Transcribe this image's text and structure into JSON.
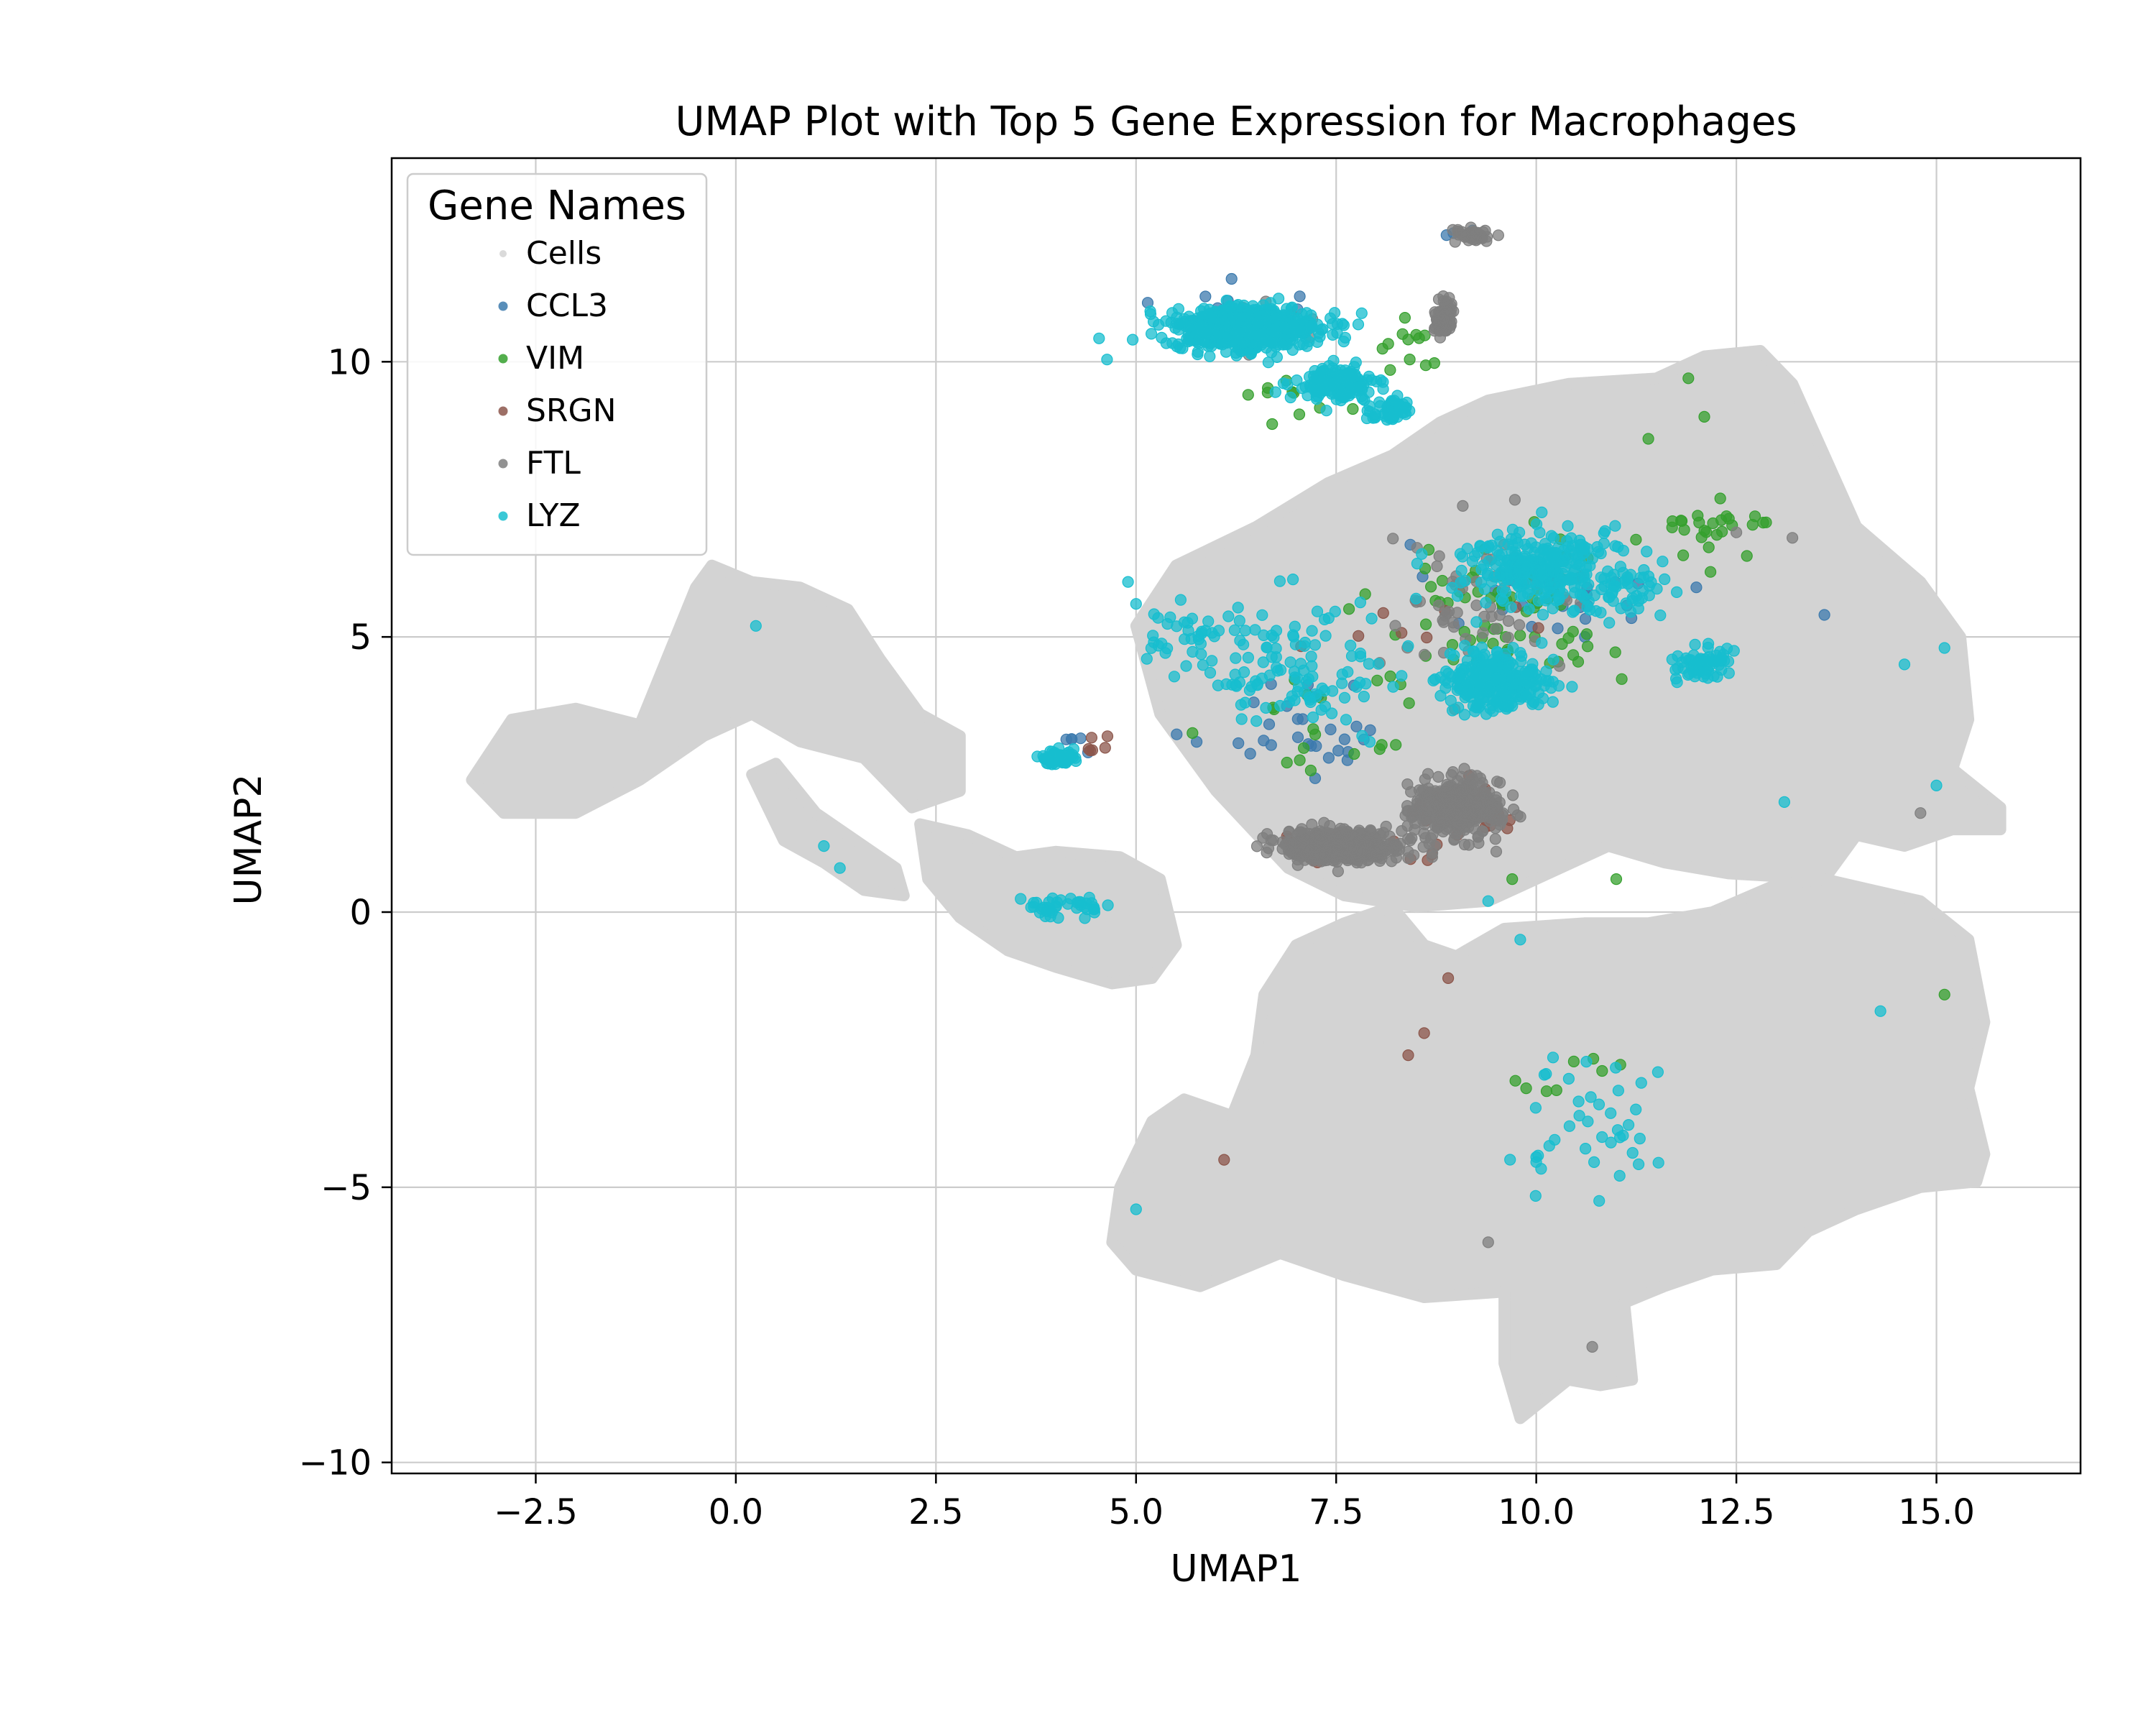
{
  "chart_data": {
    "type": "scatter",
    "title": "UMAP Plot with Top 5 Gene Expression for Macrophages",
    "xlabel": "UMAP1",
    "ylabel": "UMAP2",
    "xlim": [
      -4.3,
      16.8
    ],
    "ylim": [
      -10.2,
      13.7
    ],
    "grid": true,
    "legend": {
      "title": "Gene Names",
      "placement": "top-left"
    },
    "xticks": [
      -2.5,
      0.0,
      2.5,
      5.0,
      7.5,
      10.0,
      12.5,
      15.0
    ],
    "xtick_labels": [
      "−2.5",
      "0.0",
      "2.5",
      "5.0",
      "7.5",
      "10.0",
      "12.5",
      "15.0"
    ],
    "yticks": [
      -10,
      -5,
      0,
      5,
      10
    ],
    "ytick_labels": [
      "−10",
      "−5",
      "0",
      "5",
      "10"
    ],
    "background": {
      "name": "Cells",
      "color": "#d3d3d3",
      "regions": [
        {
          "x": [
            -3.3,
            -2.8,
            -2.0,
            -1.2,
            -0.5,
            -0.3,
            0.2,
            0.8,
            1.4,
            1.8,
            2.3,
            2.8,
            2.8,
            2.2,
            1.6,
            0.8,
            0.2,
            -0.4,
            -1.2,
            -2.0,
            -2.9,
            -3.3
          ],
          "y": [
            2.4,
            3.5,
            3.7,
            3.4,
            5.9,
            6.3,
            6.0,
            5.9,
            5.5,
            4.6,
            3.6,
            3.2,
            2.2,
            1.9,
            2.8,
            3.1,
            3.6,
            3.2,
            2.4,
            1.8,
            1.8,
            2.4
          ]
        },
        {
          "x": [
            0.2,
            0.5,
            1.0,
            1.5,
            2.0,
            2.1,
            1.6,
            1.1,
            0.6,
            0.2
          ],
          "y": [
            2.5,
            2.7,
            1.8,
            1.3,
            0.8,
            0.3,
            0.4,
            0.9,
            1.3,
            2.5
          ]
        },
        {
          "x": [
            2.3,
            2.9,
            3.5,
            4.0,
            4.8,
            5.3,
            5.5,
            5.2,
            4.7,
            4.0,
            3.4,
            2.8,
            2.4,
            2.3
          ],
          "y": [
            1.6,
            1.4,
            1.0,
            1.1,
            1.0,
            0.6,
            -0.6,
            -1.2,
            -1.3,
            -1.0,
            -0.7,
            -0.1,
            0.6,
            1.6
          ]
        },
        {
          "x": [
            5.0,
            5.5,
            6.5,
            7.4,
            8.2,
            8.8,
            9.4,
            10.4,
            11.5,
            12.1,
            12.8,
            13.2,
            14.0,
            14.8,
            15.3,
            15.4,
            15.2,
            15.8,
            15.8,
            15.2,
            14.6,
            14.0,
            13.6,
            12.4,
            11.6,
            10.9,
            10.0,
            9.4,
            8.5,
            7.6,
            6.9,
            6.0,
            5.3,
            5.0
          ],
          "y": [
            5.2,
            6.3,
            7.0,
            7.8,
            8.3,
            8.9,
            9.3,
            9.6,
            9.7,
            10.1,
            10.2,
            9.6,
            7.0,
            6.0,
            5.0,
            3.5,
            2.6,
            1.9,
            1.5,
            1.5,
            1.2,
            1.4,
            0.6,
            0.7,
            0.9,
            1.2,
            0.6,
            0.2,
            0.1,
            0.3,
            0.8,
            2.2,
            3.6,
            5.2
          ]
        },
        {
          "x": [
            8.2,
            8.6,
            9.0,
            9.6,
            10.6,
            11.4,
            12.2,
            13.0,
            13.6,
            14.2,
            14.8,
            15.4,
            15.6,
            15.4,
            15.6,
            15.5,
            14.8,
            14.0,
            13.4,
            13.0,
            12.2,
            11.6,
            11.1,
            11.2,
            10.8,
            10.4,
            9.8,
            9.6,
            9.6,
            8.6,
            7.6,
            6.8,
            5.8,
            5.0,
            4.7,
            4.8,
            5.2,
            5.6,
            6.2,
            6.5,
            6.6,
            7.0,
            7.6,
            8.2
          ],
          "y": [
            0.1,
            -0.6,
            -0.8,
            -0.3,
            -0.2,
            -0.2,
            0.0,
            0.5,
            0.6,
            0.4,
            0.2,
            -0.5,
            -2.0,
            -3.2,
            -4.4,
            -4.9,
            -5.0,
            -5.4,
            -5.8,
            -6.4,
            -6.5,
            -6.8,
            -7.1,
            -8.5,
            -8.6,
            -8.5,
            -9.2,
            -8.2,
            -6.9,
            -7.0,
            -6.6,
            -6.2,
            -6.8,
            -6.5,
            -6.0,
            -5.0,
            -3.8,
            -3.4,
            -3.7,
            -2.6,
            -1.5,
            -0.6,
            -0.2,
            0.1
          ]
        }
      ]
    },
    "series": [
      {
        "name": "CCL3",
        "color": "#3c7aad",
        "clusters": [
          {
            "n": 30,
            "cx": 7.0,
            "cy": 3.4,
            "sx": 1.4,
            "sy": 1.0
          },
          {
            "n": 25,
            "cx": 10.0,
            "cy": 5.8,
            "sx": 1.3,
            "sy": 0.9
          },
          {
            "n": 10,
            "cx": 6.2,
            "cy": 11.0,
            "sx": 0.9,
            "sy": 0.4
          },
          {
            "n": 4,
            "cx": 4.2,
            "cy": 3.1,
            "sx": 0.2,
            "sy": 0.2
          },
          {
            "n": 3,
            "cx": 9.0,
            "cy": 12.3,
            "sx": 0.2,
            "sy": 0.1
          }
        ],
        "points": [
          [
            13.6,
            5.4
          ],
          [
            12.0,
            5.9
          ],
          [
            4.4,
            2.9
          ]
        ]
      },
      {
        "name": "VIM",
        "color": "#35a02e",
        "clusters": [
          {
            "n": 70,
            "cx": 9.6,
            "cy": 5.6,
            "sx": 1.6,
            "sy": 1.5
          },
          {
            "n": 25,
            "cx": 12.3,
            "cy": 7.0,
            "sx": 0.8,
            "sy": 0.4
          },
          {
            "n": 20,
            "cx": 7.4,
            "cy": 3.5,
            "sx": 1.2,
            "sy": 1.2
          },
          {
            "n": 12,
            "cx": 8.4,
            "cy": 10.4,
            "sx": 0.6,
            "sy": 0.9
          },
          {
            "n": 10,
            "cx": 7.0,
            "cy": 9.4,
            "sx": 0.8,
            "sy": 0.5
          },
          {
            "n": 8,
            "cx": 10.4,
            "cy": -3.2,
            "sx": 0.9,
            "sy": 0.7
          }
        ],
        "points": [
          [
            11.9,
            9.7
          ],
          [
            12.1,
            9.0
          ],
          [
            11.4,
            8.6
          ],
          [
            15.1,
            -1.5
          ],
          [
            11.0,
            0.6
          ],
          [
            9.7,
            0.6
          ]
        ]
      },
      {
        "name": "SRGN",
        "color": "#8c564b",
        "clusters": [
          {
            "n": 40,
            "cx": 9.2,
            "cy": 1.8,
            "sx": 0.6,
            "sy": 0.5
          },
          {
            "n": 25,
            "cx": 7.6,
            "cy": 1.2,
            "sx": 1.0,
            "sy": 0.3
          },
          {
            "n": 6,
            "cx": 4.5,
            "cy": 3.0,
            "sx": 0.25,
            "sy": 0.2
          },
          {
            "n": 8,
            "cx": 8.5,
            "cy": 5.0,
            "sx": 1.2,
            "sy": 1.0
          }
        ],
        "points": [
          [
            8.9,
            -1.2
          ],
          [
            8.6,
            -2.2
          ],
          [
            8.4,
            -2.6
          ],
          [
            6.1,
            -4.5
          ]
        ]
      },
      {
        "name": "FTL",
        "color": "#7f7f7f",
        "clusters": [
          {
            "n": 500,
            "cx": 7.6,
            "cy": 1.2,
            "sx": 0.75,
            "sy": 0.28
          },
          {
            "n": 380,
            "cx": 9.0,
            "cy": 1.9,
            "sx": 0.55,
            "sy": 0.5
          },
          {
            "n": 80,
            "cx": 8.85,
            "cy": 10.8,
            "sx": 0.12,
            "sy": 0.3
          },
          {
            "n": 40,
            "cx": 9.2,
            "cy": 12.3,
            "sx": 0.25,
            "sy": 0.12
          },
          {
            "n": 60,
            "cx": 9.3,
            "cy": 5.5,
            "sx": 1.3,
            "sy": 1.2
          },
          {
            "n": 20,
            "cx": 6.4,
            "cy": 10.6,
            "sx": 0.9,
            "sy": 0.6
          }
        ],
        "points": [
          [
            12.5,
            6.9
          ],
          [
            13.2,
            6.8
          ],
          [
            14.8,
            1.8
          ],
          [
            9.4,
            -6.0
          ],
          [
            10.7,
            -7.9
          ],
          [
            8.7,
            1.0
          ],
          [
            9.5,
            1.1
          ]
        ]
      },
      {
        "name": "LYZ",
        "color": "#17becf",
        "clusters": [
          {
            "n": 650,
            "cx": 6.4,
            "cy": 10.6,
            "sx": 0.9,
            "sy": 0.4
          },
          {
            "n": 150,
            "cx": 7.5,
            "cy": 9.6,
            "sx": 0.5,
            "sy": 0.3
          },
          {
            "n": 60,
            "cx": 8.2,
            "cy": 9.1,
            "sx": 0.25,
            "sy": 0.2
          },
          {
            "n": 300,
            "cx": 9.5,
            "cy": 4.2,
            "sx": 0.6,
            "sy": 0.5
          },
          {
            "n": 260,
            "cx": 10.0,
            "cy": 6.3,
            "sx": 0.9,
            "sy": 0.7
          },
          {
            "n": 120,
            "cx": 7.0,
            "cy": 4.5,
            "sx": 1.3,
            "sy": 1.2
          },
          {
            "n": 60,
            "cx": 12.1,
            "cy": 4.5,
            "sx": 0.35,
            "sy": 0.35
          },
          {
            "n": 55,
            "cx": 11.0,
            "cy": 5.8,
            "sx": 0.6,
            "sy": 0.5
          },
          {
            "n": 50,
            "cx": 4.0,
            "cy": 2.8,
            "sx": 0.22,
            "sy": 0.15
          },
          {
            "n": 40,
            "cx": 4.1,
            "cy": 0.1,
            "sx": 0.55,
            "sy": 0.2
          },
          {
            "n": 40,
            "cx": 10.6,
            "cy": -3.8,
            "sx": 1.1,
            "sy": 1.2
          },
          {
            "n": 30,
            "cx": 5.6,
            "cy": 5.1,
            "sx": 0.5,
            "sy": 0.5
          }
        ],
        "points": [
          [
            0.25,
            5.2
          ],
          [
            1.1,
            1.2
          ],
          [
            1.3,
            0.8
          ],
          [
            15.0,
            2.3
          ],
          [
            14.6,
            4.5
          ],
          [
            15.1,
            4.8
          ],
          [
            13.1,
            2.0
          ],
          [
            14.3,
            -1.8
          ],
          [
            5.0,
            -5.4
          ],
          [
            9.8,
            -0.5
          ],
          [
            9.4,
            0.2
          ],
          [
            4.9,
            6.0
          ],
          [
            5.0,
            5.6
          ]
        ]
      }
    ]
  }
}
